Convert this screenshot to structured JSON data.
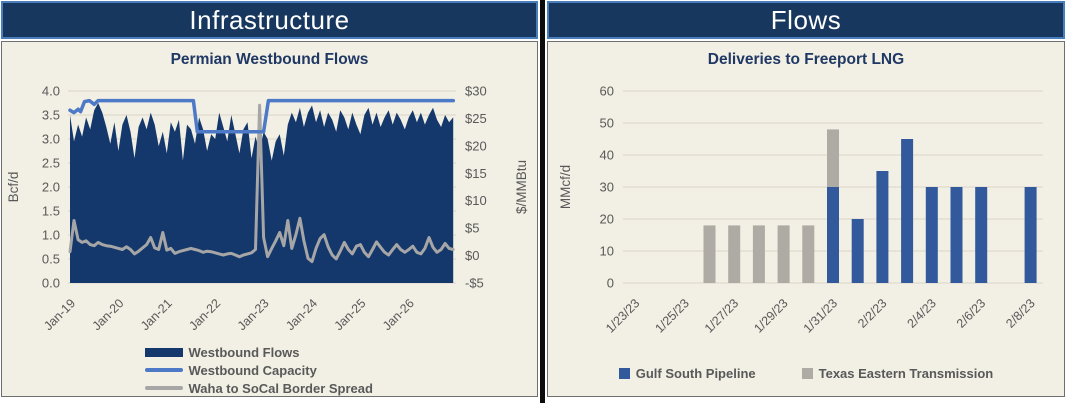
{
  "panels": [
    {
      "header": "Infrastructure"
    },
    {
      "header": "Flows"
    }
  ],
  "colors": {
    "header_bg": "#17375e",
    "header_border": "#4a7ebb",
    "panel_bg": "#f2efe4",
    "title_navy": "#1f3864",
    "area": "#14386c",
    "capacity_line": "#4d79c7",
    "spread_line": "#a6a6a6",
    "bar_blue": "#31599b",
    "bar_gray": "#aeaaa4",
    "axis_text": "#595959",
    "gridline": "#d9d5c8",
    "divider": "#0c0c0c"
  },
  "chart_data": [
    {
      "type": "area",
      "title": "Permian Westbound Flows",
      "y_left": {
        "label": "Bcf/d",
        "min": 0,
        "max": 4,
        "tick_labels": [
          "0.0",
          "0.5",
          "1.0",
          "1.5",
          "2.0",
          "2.5",
          "3.0",
          "3.5",
          "4.0"
        ]
      },
      "y_right": {
        "label": "$/MMBtu",
        "min": -5,
        "max": 30,
        "tick_labels": [
          "-$5",
          "$0",
          "$5",
          "$10",
          "$15",
          "$20",
          "$25",
          "$30"
        ]
      },
      "x_tick_labels": [
        "Jan-19",
        "Jan-20",
        "Jan-21",
        "Jan-22",
        "Jan-23",
        "Jan-24",
        "Jan-25",
        "Jan-26"
      ],
      "x_start_year": 2019.0,
      "x_step_years": 0.08333,
      "legend": [
        {
          "label": "Westbound Flows",
          "swatch": "area",
          "color_key": "area"
        },
        {
          "label": "Westbound Capacity",
          "swatch": "line",
          "color_key": "capacity_line"
        },
        {
          "label": "Waha to SoCal Border Spread",
          "swatch": "line",
          "color_key": "spread_line"
        }
      ],
      "series": [
        {
          "name": "Westbound Flows",
          "axis": "left",
          "kind": "area",
          "units": "Bcf/d",
          "monthly_values": [
            3.5,
            2.95,
            3.3,
            3.05,
            3.45,
            3.2,
            3.6,
            3.75,
            3.55,
            3.25,
            2.9,
            3.35,
            2.75,
            3.3,
            3.5,
            3.15,
            2.6,
            3.25,
            3.45,
            3.2,
            3.55,
            3.3,
            2.85,
            3.15,
            2.7,
            3.35,
            3.15,
            3.4,
            2.55,
            3.3,
            3.2,
            2.9,
            3.45,
            3.2,
            2.75,
            3.1,
            3.0,
            3.55,
            3.25,
            2.95,
            3.5,
            3.1,
            2.7,
            3.2,
            3.35,
            2.6,
            3.05,
            2.75,
            3.15,
            3.0,
            2.55,
            2.95,
            3.1,
            2.65,
            3.3,
            3.55,
            3.35,
            3.65,
            3.25,
            3.55,
            3.7,
            3.35,
            3.6,
            3.25,
            3.55,
            3.4,
            3.15,
            3.6,
            3.45,
            3.2,
            3.55,
            3.3,
            3.1,
            3.5,
            3.65,
            3.3,
            3.55,
            3.25,
            3.45,
            3.6,
            3.3,
            3.55,
            3.4,
            3.2,
            3.45,
            3.6,
            3.35,
            3.55,
            3.3,
            3.5,
            3.65,
            3.4,
            3.25,
            3.5,
            3.35,
            3.45
          ]
        },
        {
          "name": "Westbound Capacity",
          "axis": "left",
          "kind": "line",
          "units": "Bcf/d",
          "points": [
            [
              2019.0,
              3.6
            ],
            [
              2019.08,
              3.55
            ],
            [
              2019.17,
              3.62
            ],
            [
              2019.22,
              3.57
            ],
            [
              2019.3,
              3.78
            ],
            [
              2019.4,
              3.8
            ],
            [
              2019.5,
              3.72
            ],
            [
              2019.58,
              3.8
            ],
            [
              2021.55,
              3.8
            ],
            [
              2021.63,
              3.15
            ],
            [
              2023.0,
              3.15
            ],
            [
              2023.1,
              3.8
            ],
            [
              2026.92,
              3.8
            ]
          ]
        },
        {
          "name": "Waha to SoCal Border Spread",
          "axis": "right",
          "kind": "line",
          "units": "$/MMBtu",
          "monthly_values": [
            0.7,
            6.4,
            2.9,
            2.4,
            2.7,
            2.0,
            1.8,
            2.4,
            2.0,
            1.8,
            1.7,
            1.5,
            1.3,
            1.1,
            1.6,
            1.1,
            0.3,
            0.8,
            1.4,
            2.0,
            3.3,
            1.4,
            1.1,
            4.2,
            1.0,
            1.3,
            0.4,
            0.7,
            0.9,
            1.1,
            1.3,
            1.1,
            0.9,
            0.6,
            0.8,
            0.7,
            0.5,
            0.3,
            0.1,
            0.3,
            0.4,
            0.1,
            -0.2,
            0.1,
            0.3,
            0.5,
            1.1,
            27.4,
            3.3,
            -0.2,
            1.3,
            2.7,
            4.2,
            1.8,
            6.4,
            1.3,
            3.8,
            6.8,
            2.7,
            -0.5,
            -1.1,
            1.3,
            3.1,
            3.8,
            1.6,
            0.1,
            -0.6,
            0.8,
            2.4,
            1.1,
            0.3,
            1.7,
            2.0,
            0.6,
            -0.2,
            1.1,
            2.5,
            1.5,
            0.6,
            0.1,
            1.1,
            2.0,
            1.1,
            0.6,
            1.1,
            1.7,
            0.6,
            0.3,
            1.3,
            3.3,
            1.5,
            0.6,
            1.1,
            2.2,
            1.3,
            1.1
          ]
        }
      ]
    },
    {
      "type": "bar",
      "title": "Deliveries to Freeport LNG",
      "ylabel": "MMcf/d",
      "ylim": [
        0,
        60
      ],
      "y_tick_labels": [
        "0",
        "10",
        "20",
        "30",
        "40",
        "50",
        "60"
      ],
      "categories": [
        "1/23/23",
        "1/24/23",
        "1/25/23",
        "1/26/23",
        "1/27/23",
        "1/28/23",
        "1/29/23",
        "1/30/23",
        "1/31/23",
        "2/1/23",
        "2/2/23",
        "2/3/23",
        "2/4/23",
        "2/5/23",
        "2/6/23",
        "2/7/23",
        "2/8/23"
      ],
      "x_tick_label_every": 2,
      "stacked": true,
      "legend": [
        {
          "label": "Gulf South Pipeline",
          "color_key": "bar_blue"
        },
        {
          "label": "Texas Eastern Transmission",
          "color_key": "bar_gray"
        }
      ],
      "series": [
        {
          "name": "Gulf South Pipeline",
          "color_key": "bar_blue",
          "values": [
            0,
            0,
            0,
            0,
            0,
            0,
            0,
            0,
            30,
            20,
            35,
            45,
            30,
            30,
            30,
            0,
            30
          ]
        },
        {
          "name": "Texas Eastern Transmission",
          "color_key": "bar_gray",
          "values": [
            0,
            0,
            0,
            18,
            18,
            18,
            18,
            18,
            18,
            0,
            0,
            0,
            0,
            0,
            0,
            0,
            0
          ]
        }
      ]
    }
  ]
}
